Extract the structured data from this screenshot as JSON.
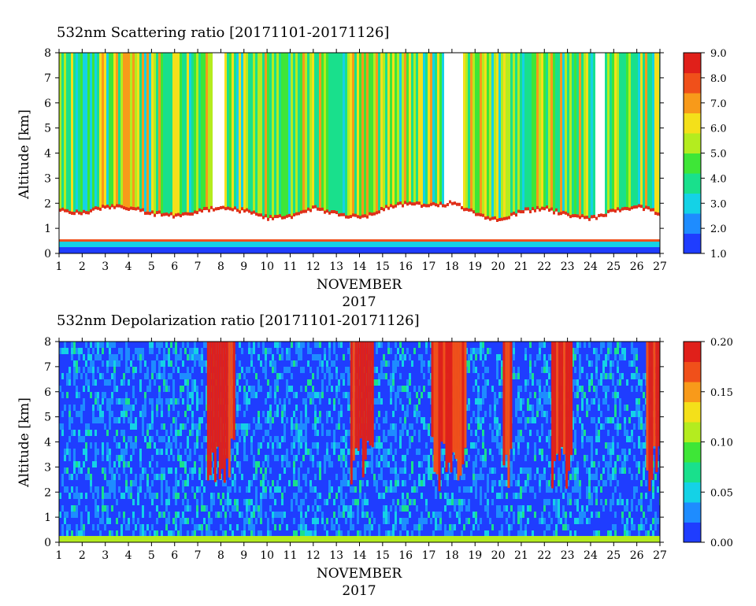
{
  "chart_data": [
    {
      "type": "heatmap",
      "title": "532nm Scattering ratio [20171101-20171126]",
      "ylabel": "Altitude [km]",
      "xlabel": "NOVEMBER",
      "xlabel2": "2017",
      "x_ticks": [
        "1",
        "2",
        "3",
        "4",
        "5",
        "6",
        "7",
        "8",
        "9",
        "10",
        "11",
        "12",
        "13",
        "14",
        "15",
        "16",
        "17",
        "18",
        "19",
        "20",
        "21",
        "22",
        "23",
        "24",
        "25",
        "26",
        "27"
      ],
      "y_ticks": [
        "0",
        "1",
        "2",
        "3",
        "4",
        "5",
        "6",
        "7",
        "8"
      ],
      "xlim": [
        1,
        27
      ],
      "ylim": [
        0,
        8
      ],
      "colorbar": {
        "range": [
          1.0,
          9.0
        ],
        "ticks": [
          "1.0",
          "2.0",
          "3.0",
          "4.0",
          "5.0",
          "6.0",
          "7.0",
          "8.0",
          "9.0"
        ],
        "colors": [
          "#1f3dff",
          "#1e8cff",
          "#14d2e6",
          "#19e08c",
          "#3ee637",
          "#b4ec1f",
          "#f4e01a",
          "#f89a1a",
          "#f0501a",
          "#e0201a"
        ]
      },
      "boundary_layer_top_km": [
        1.7,
        1.6,
        1.9,
        1.8,
        1.6,
        1.5,
        1.7,
        1.8,
        1.7,
        1.4,
        1.5,
        1.8,
        1.6,
        1.4,
        1.8,
        2.0,
        1.9,
        2.0,
        1.6,
        1.3,
        1.7,
        1.8,
        1.5,
        1.4,
        1.7,
        1.9,
        1.6
      ],
      "near_surface_band_km": [
        0.25,
        0.5
      ]
    },
    {
      "type": "heatmap",
      "title": "532nm Depolarization ratio [20171101-20171126]",
      "ylabel": "Altitude [km]",
      "xlabel": "NOVEMBER",
      "xlabel2": "2017",
      "x_ticks": [
        "1",
        "2",
        "3",
        "4",
        "5",
        "6",
        "7",
        "8",
        "9",
        "10",
        "11",
        "12",
        "13",
        "14",
        "15",
        "16",
        "17",
        "18",
        "19",
        "20",
        "21",
        "22",
        "23",
        "24",
        "25",
        "26",
        "27"
      ],
      "y_ticks": [
        "0",
        "1",
        "2",
        "3",
        "4",
        "5",
        "6",
        "7",
        "8"
      ],
      "xlim": [
        1,
        27
      ],
      "ylim": [
        0,
        8
      ],
      "colorbar": {
        "range": [
          0.0,
          0.2
        ],
        "ticks": [
          "0.00",
          "0.05",
          "0.10",
          "0.15",
          "0.20"
        ],
        "colors": [
          "#1f3dff",
          "#1e8cff",
          "#14d2e6",
          "#19e08c",
          "#3ee637",
          "#b4ec1f",
          "#f4e01a",
          "#f89a1a",
          "#f0501a",
          "#e0201a"
        ]
      },
      "high_depol_periods_day": [
        [
          7.4,
          8.6
        ],
        [
          13.6,
          14.6
        ],
        [
          17.1,
          18.6
        ],
        [
          20.2,
          20.6
        ],
        [
          22.3,
          23.2
        ],
        [
          26.4,
          27.0
        ]
      ]
    }
  ]
}
